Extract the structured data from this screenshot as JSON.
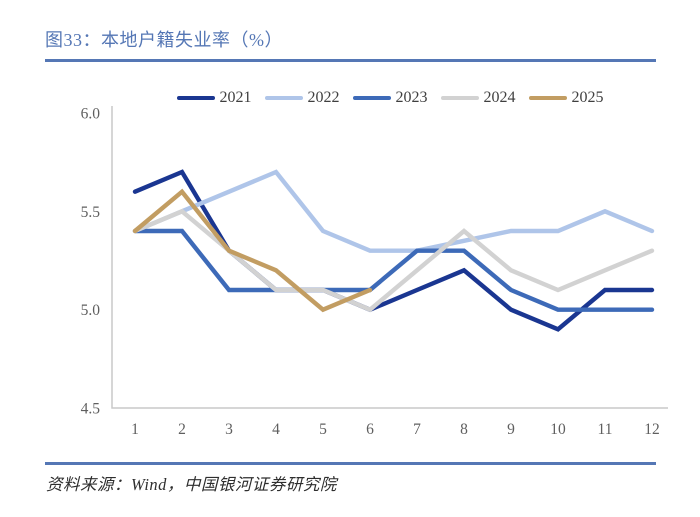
{
  "figure": {
    "title": "图33：本地户籍失业率（%）",
    "source": "资料来源：Wind，中国银河证券研究院"
  },
  "colors": {
    "accent_rule": "#5577b5",
    "title_text": "#5577b5",
    "axis_line": "#c9c9c9",
    "axis_text": "#5f5f5f",
    "legend_text": "#3f3f3f",
    "source_text": "#2e2e2e"
  },
  "chart_data": {
    "type": "line",
    "title": "本地户籍失业率（%）",
    "xlabel": "",
    "ylabel": "",
    "x": [
      1,
      2,
      3,
      4,
      5,
      6,
      7,
      8,
      9,
      10,
      11,
      12
    ],
    "x_tick_labels": [
      "1",
      "2",
      "3",
      "4",
      "5",
      "6",
      "7",
      "8",
      "9",
      "10",
      "11",
      "12"
    ],
    "ylim": [
      4.5,
      6.0
    ],
    "y_ticks": [
      6.0,
      5.5,
      5.0,
      4.5
    ],
    "y_tick_labels": [
      "6.0",
      "5.5",
      "5.0",
      "4.5"
    ],
    "grid": false,
    "legend_position": "top",
    "series": [
      {
        "name": "2021",
        "color": "#1a3691",
        "values": [
          5.6,
          5.7,
          5.3,
          5.1,
          5.1,
          5.0,
          5.1,
          5.2,
          5.0,
          4.9,
          5.1,
          5.1
        ]
      },
      {
        "name": "2022",
        "color": "#afc5e9",
        "values": [
          5.4,
          5.5,
          5.6,
          5.7,
          5.4,
          5.3,
          5.3,
          5.35,
          5.4,
          5.4,
          5.5,
          5.4
        ]
      },
      {
        "name": "2023",
        "color": "#3d6ab8",
        "values": [
          5.4,
          5.4,
          5.1,
          5.1,
          5.1,
          5.1,
          5.3,
          5.3,
          5.1,
          5.0,
          5.0,
          5.0
        ]
      },
      {
        "name": "2024",
        "color": "#d2d2d2",
        "values": [
          5.4,
          5.5,
          5.3,
          5.1,
          5.1,
          5.0,
          5.2,
          5.4,
          5.2,
          5.1,
          5.2,
          5.3
        ]
      },
      {
        "name": "2025",
        "color": "#c29d62",
        "values": [
          5.4,
          5.6,
          5.3,
          5.2,
          5.0,
          5.1,
          null,
          null,
          null,
          null,
          null,
          null
        ]
      }
    ]
  }
}
